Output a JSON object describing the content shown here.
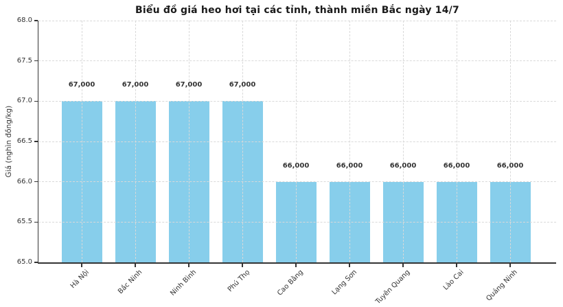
{
  "chart_data": {
    "type": "bar",
    "title": "Biểu đồ giá heo hơi tại các tỉnh, thành miền Bắc ngày 14/7",
    "xlabel": "",
    "ylabel": "Giá (nghìn đồng/kg)",
    "categories": [
      "Hà Nội",
      "Bắc Ninh",
      "Ninh Bình",
      "Phú Thọ",
      "Cao Bằng",
      "Lạng Sơn",
      "Tuyên Quang",
      "Lào Cai",
      "Quảng Ninh"
    ],
    "values": [
      67,
      67,
      67,
      67,
      66,
      66,
      66,
      66,
      66
    ],
    "bar_labels": [
      "67,000",
      "67,000",
      "67,000",
      "67,000",
      "66,000",
      "66,000",
      "66,000",
      "66,000",
      "66,000"
    ],
    "unit": "nghìn đồng/kg",
    "ylim": [
      65.0,
      68.0
    ],
    "yticks": [
      "65.0",
      "65.5",
      "66.0",
      "66.5",
      "67.0",
      "67.5",
      "68.0"
    ],
    "grid": true,
    "grid_style": "dashed",
    "legend": "none",
    "colors": {
      "bar": "#87CEEB",
      "grid": "#d9d9d9",
      "axis": "#333333",
      "text": "#333333",
      "title": "#1a1a1a",
      "background": "#ffffff"
    }
  }
}
